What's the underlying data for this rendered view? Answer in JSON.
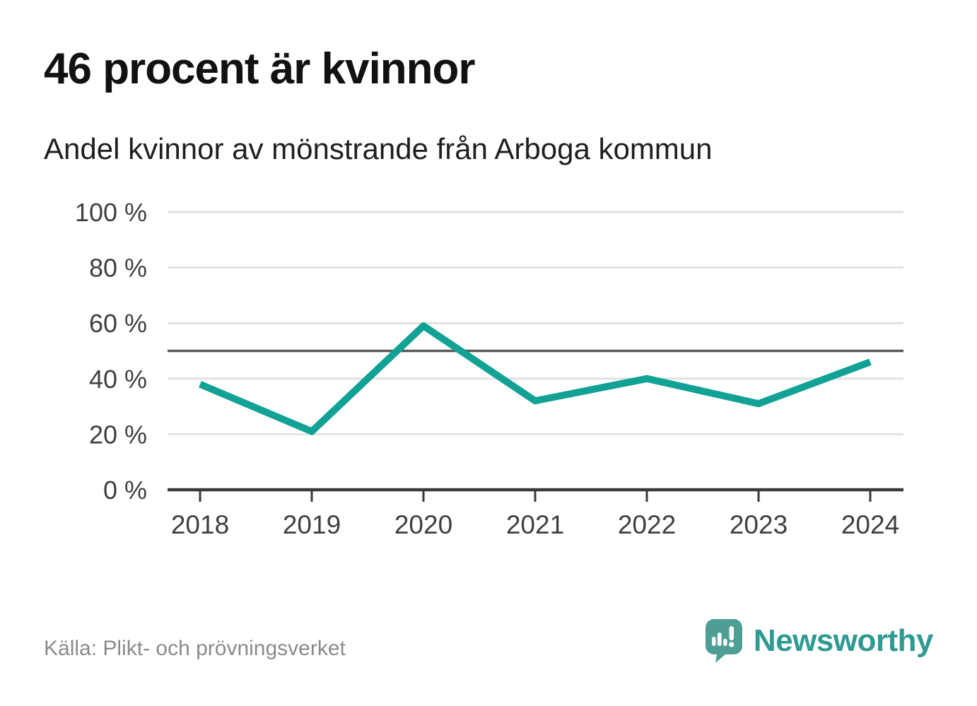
{
  "header": {
    "title": "46 procent är kvinnor",
    "subtitle": "Andel kvinnor av mönstrande från Arboga kommun"
  },
  "footer": {
    "source": "Källa: Plikt- och prövningsverket",
    "brand_name": "Newsworthy"
  },
  "colors": {
    "line": "#12a195",
    "grid": "#e2e2e2",
    "reference_line": "#5a5a5a",
    "axis": "#3a3a3a",
    "tick_text": "#3f3f3f",
    "source_text": "#8b8b8b",
    "brand_text": "#2f9a92",
    "brand_bubble": "#4f9e96",
    "background": "#ffffff"
  },
  "chart_data": {
    "type": "line",
    "title": "46 procent är kvinnor",
    "subtitle": "Andel kvinnor av mönstrande från Arboga kommun",
    "categories": [
      "2018",
      "2019",
      "2020",
      "2021",
      "2022",
      "2023",
      "2024"
    ],
    "series": [
      {
        "name": "Andel kvinnor av mönstrande",
        "values": [
          38,
          21,
          59,
          32,
          40,
          31,
          46
        ]
      }
    ],
    "unit": "%",
    "ylim": [
      0,
      100
    ],
    "yticks": [
      0,
      20,
      40,
      60,
      80,
      100
    ],
    "ytick_suffix": " %",
    "reference_line": 50,
    "grid": true,
    "legend_position": "none",
    "xlabel": "",
    "ylabel": ""
  }
}
